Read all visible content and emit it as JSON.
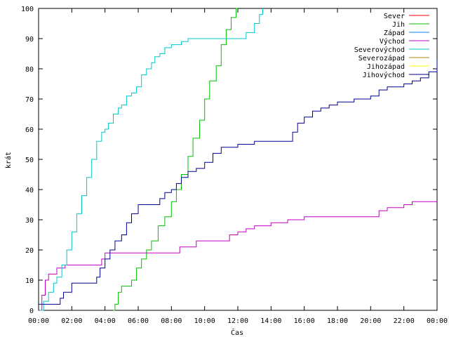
{
  "chart_data": {
    "type": "line",
    "title": "",
    "xlabel": "Čas",
    "ylabel": "krát",
    "xlim": [
      0,
      24
    ],
    "ylim": [
      0,
      100
    ],
    "xticks": [
      "00:00",
      "02:00",
      "04:00",
      "06:00",
      "08:00",
      "10:00",
      "12:00",
      "14:00",
      "16:00",
      "18:00",
      "20:00",
      "22:00",
      "00:00"
    ],
    "yticks": [
      "0",
      "10",
      "20",
      "30",
      "40",
      "50",
      "60",
      "70",
      "80",
      "90",
      "100"
    ],
    "grid": false,
    "legend_position": "top-right",
    "series": [
      {
        "name": "Sever",
        "color": "#ff0000",
        "x": [],
        "y": []
      },
      {
        "name": "Jih",
        "color": "#00c000",
        "x": [
          4.5,
          4.6,
          4.8,
          5.0,
          5.4,
          5.6,
          5.9,
          6.2,
          6.5,
          6.8,
          7.2,
          7.6,
          8.0,
          8.3,
          8.6,
          9.0,
          9.3,
          9.7,
          10.0,
          10.3,
          10.7,
          11.0,
          11.3,
          11.6,
          11.9,
          12.0
        ],
        "y": [
          0,
          2,
          6,
          8,
          8,
          10,
          14,
          17,
          20,
          23,
          28,
          31,
          36,
          40,
          45,
          51,
          57,
          63,
          70,
          76,
          81,
          88,
          93,
          97,
          100,
          100
        ]
      },
      {
        "name": "Západ",
        "color": "#0080ff",
        "x": [],
        "y": []
      },
      {
        "name": "Východ",
        "color": "#c000c0",
        "x": [
          0,
          0.2,
          0.4,
          0.6,
          0.9,
          1.1,
          1.4,
          1.6,
          2.0,
          3.5,
          3.8,
          4.0,
          4.5,
          6.0,
          8.5,
          9.5,
          11.5,
          12.0,
          12.5,
          13.0,
          14.0,
          15.0,
          16.0,
          18.0,
          20.0,
          20.5,
          21.0,
          22.0,
          22.5,
          24.0
        ],
        "y": [
          0,
          5,
          10,
          12,
          12,
          14,
          14,
          15,
          15,
          15,
          17,
          19,
          19,
          19,
          21,
          23,
          25,
          26,
          27,
          28,
          29,
          30,
          31,
          31,
          31,
          33,
          34,
          35,
          36,
          36
        ]
      },
      {
        "name": "Severovýchod",
        "color": "#00c8c8",
        "x": [
          0.1,
          0.3,
          0.6,
          0.9,
          1.1,
          1.4,
          1.7,
          2.0,
          2.3,
          2.6,
          2.9,
          3.2,
          3.5,
          3.8,
          4.0,
          4.2,
          4.5,
          4.8,
          5.0,
          5.3,
          5.6,
          5.9,
          6.2,
          6.5,
          6.8,
          7.0,
          7.3,
          7.6,
          8.0,
          8.3,
          8.6,
          9.0,
          10.0,
          11.0,
          12.0,
          12.5,
          13.0,
          13.3,
          13.5
        ],
        "y": [
          0,
          3,
          6,
          9,
          11,
          15,
          20,
          26,
          32,
          38,
          44,
          50,
          56,
          59,
          60,
          62,
          65,
          67,
          68,
          71,
          72,
          74,
          78,
          80,
          82,
          84,
          85,
          87,
          88,
          88,
          89,
          90,
          90,
          90,
          90,
          92,
          95,
          98,
          100
        ]
      },
      {
        "name": "Severozápad",
        "color": "#c08000",
        "x": [],
        "y": []
      },
      {
        "name": "Jihozápad",
        "color": "#ffff00",
        "x": [],
        "y": []
      },
      {
        "name": "Jihovýchod",
        "color": "#000090",
        "x": [
          0,
          0.5,
          1.0,
          1.3,
          1.5,
          2.0,
          3.0,
          3.5,
          3.7,
          4.0,
          4.3,
          4.6,
          5.0,
          5.3,
          5.6,
          6.0,
          6.5,
          7.0,
          7.3,
          7.6,
          8.0,
          8.3,
          8.6,
          9.0,
          9.5,
          10.0,
          10.5,
          11.0,
          11.5,
          12.0,
          13.0,
          14.0,
          15.0,
          15.3,
          15.6,
          16.0,
          16.5,
          17.0,
          17.5,
          18.0,
          19.0,
          20.0,
          20.5,
          21.0,
          22.0,
          22.5,
          23.0,
          23.5,
          24.0
        ],
        "y": [
          2,
          2,
          2,
          4,
          6,
          9,
          9,
          11,
          14,
          17,
          20,
          23,
          25,
          29,
          32,
          35,
          35,
          35,
          37,
          39,
          40,
          42,
          44,
          46,
          47,
          49,
          52,
          54,
          54,
          55,
          56,
          56,
          56,
          59,
          62,
          64,
          66,
          67,
          68,
          69,
          70,
          71,
          73,
          74,
          75,
          76,
          77,
          79,
          83
        ]
      }
    ]
  }
}
